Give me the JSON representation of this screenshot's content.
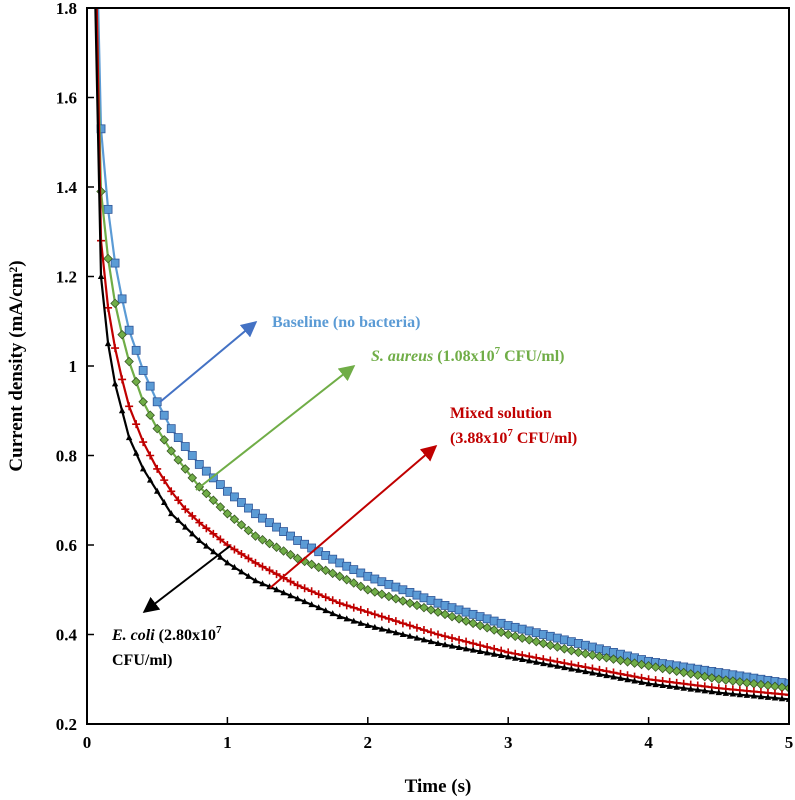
{
  "chart_data": {
    "type": "line",
    "xlabel": "Time (s)",
    "ylabel": "Current density (mA/cm²)",
    "xlim": [
      0,
      5
    ],
    "ylim": [
      0.2,
      1.8
    ],
    "xticks": [
      "0",
      "1",
      "2",
      "3",
      "4",
      "5"
    ],
    "yticks": [
      "0.2",
      "0.4",
      "0.6",
      "0.8",
      "1",
      "1.2",
      "1.4",
      "1.6",
      "1.8"
    ],
    "grid": false,
    "series": [
      {
        "key": "baseline",
        "name": "Baseline (no bacteria)",
        "color": "#5b9bd5",
        "marker": "square",
        "points": [
          [
            0.08,
            1.8
          ],
          [
            0.1,
            1.53
          ],
          [
            0.15,
            1.35
          ],
          [
            0.2,
            1.23
          ],
          [
            0.25,
            1.15
          ],
          [
            0.3,
            1.08
          ],
          [
            0.4,
            0.99
          ],
          [
            0.5,
            0.92
          ],
          [
            0.6,
            0.86
          ],
          [
            0.7,
            0.82
          ],
          [
            0.8,
            0.78
          ],
          [
            1.0,
            0.72
          ],
          [
            1.2,
            0.67
          ],
          [
            1.5,
            0.61
          ],
          [
            1.8,
            0.56
          ],
          [
            2.0,
            0.53
          ],
          [
            2.5,
            0.47
          ],
          [
            3.0,
            0.42
          ],
          [
            3.5,
            0.38
          ],
          [
            4.0,
            0.34
          ],
          [
            4.5,
            0.315
          ],
          [
            5.0,
            0.29
          ]
        ]
      },
      {
        "key": "saureus",
        "name": "S. aureus (1.08x10^7 CFU/ml)",
        "color": "#70ad47",
        "marker": "diamond",
        "points": [
          [
            0.07,
            1.8
          ],
          [
            0.1,
            1.39
          ],
          [
            0.15,
            1.24
          ],
          [
            0.2,
            1.14
          ],
          [
            0.25,
            1.07
          ],
          [
            0.3,
            1.01
          ],
          [
            0.4,
            0.92
          ],
          [
            0.5,
            0.86
          ],
          [
            0.6,
            0.81
          ],
          [
            0.7,
            0.77
          ],
          [
            0.8,
            0.73
          ],
          [
            1.0,
            0.67
          ],
          [
            1.2,
            0.62
          ],
          [
            1.5,
            0.57
          ],
          [
            1.8,
            0.53
          ],
          [
            2.0,
            0.5
          ],
          [
            2.5,
            0.45
          ],
          [
            3.0,
            0.4
          ],
          [
            3.5,
            0.36
          ],
          [
            4.0,
            0.33
          ],
          [
            4.5,
            0.3
          ],
          [
            5.0,
            0.28
          ]
        ]
      },
      {
        "key": "mixed",
        "name": "Mixed solution (3.88x10^7 CFU/ml)",
        "color": "#c00000",
        "marker": "plus",
        "points": [
          [
            0.07,
            1.8
          ],
          [
            0.1,
            1.28
          ],
          [
            0.15,
            1.13
          ],
          [
            0.2,
            1.04
          ],
          [
            0.25,
            0.97
          ],
          [
            0.3,
            0.91
          ],
          [
            0.4,
            0.83
          ],
          [
            0.5,
            0.77
          ],
          [
            0.6,
            0.72
          ],
          [
            0.7,
            0.68
          ],
          [
            0.8,
            0.65
          ],
          [
            1.0,
            0.6
          ],
          [
            1.2,
            0.56
          ],
          [
            1.5,
            0.51
          ],
          [
            1.8,
            0.47
          ],
          [
            2.0,
            0.45
          ],
          [
            2.5,
            0.4
          ],
          [
            3.0,
            0.36
          ],
          [
            3.5,
            0.33
          ],
          [
            4.0,
            0.3
          ],
          [
            4.5,
            0.28
          ],
          [
            5.0,
            0.265
          ]
        ]
      },
      {
        "key": "ecoli",
        "name": "E. coli (2.80x10^7 CFU/ml)",
        "color": "#000000",
        "marker": "triangle",
        "points": [
          [
            0.06,
            1.8
          ],
          [
            0.1,
            1.2
          ],
          [
            0.15,
            1.05
          ],
          [
            0.2,
            0.96
          ],
          [
            0.25,
            0.9
          ],
          [
            0.3,
            0.84
          ],
          [
            0.4,
            0.77
          ],
          [
            0.5,
            0.72
          ],
          [
            0.6,
            0.67
          ],
          [
            0.7,
            0.64
          ],
          [
            0.8,
            0.61
          ],
          [
            1.0,
            0.56
          ],
          [
            1.2,
            0.52
          ],
          [
            1.5,
            0.48
          ],
          [
            1.8,
            0.44
          ],
          [
            2.0,
            0.42
          ],
          [
            2.5,
            0.38
          ],
          [
            3.0,
            0.35
          ],
          [
            3.5,
            0.32
          ],
          [
            4.0,
            0.29
          ],
          [
            4.5,
            0.27
          ],
          [
            5.0,
            0.255
          ]
        ]
      }
    ],
    "annotations": {
      "baseline": {
        "text": "Baseline (no bacteria)",
        "color": "#5b9bd5"
      },
      "saureus": {
        "italic": "S. aureus",
        "rest": " (1.08x10",
        "sup": "7",
        "tail": " CFU/ml)",
        "color": "#70ad47"
      },
      "mixed": {
        "line1": "Mixed solution",
        "line2a": "(3.88x10",
        "sup": "7",
        "line2b": " CFU/ml)",
        "color": "#c00000"
      },
      "ecoli": {
        "italic": "E. coli",
        "rest": " (2.80x10",
        "sup": "7",
        "line2": "CFU/ml)",
        "color": "#000000"
      }
    }
  }
}
